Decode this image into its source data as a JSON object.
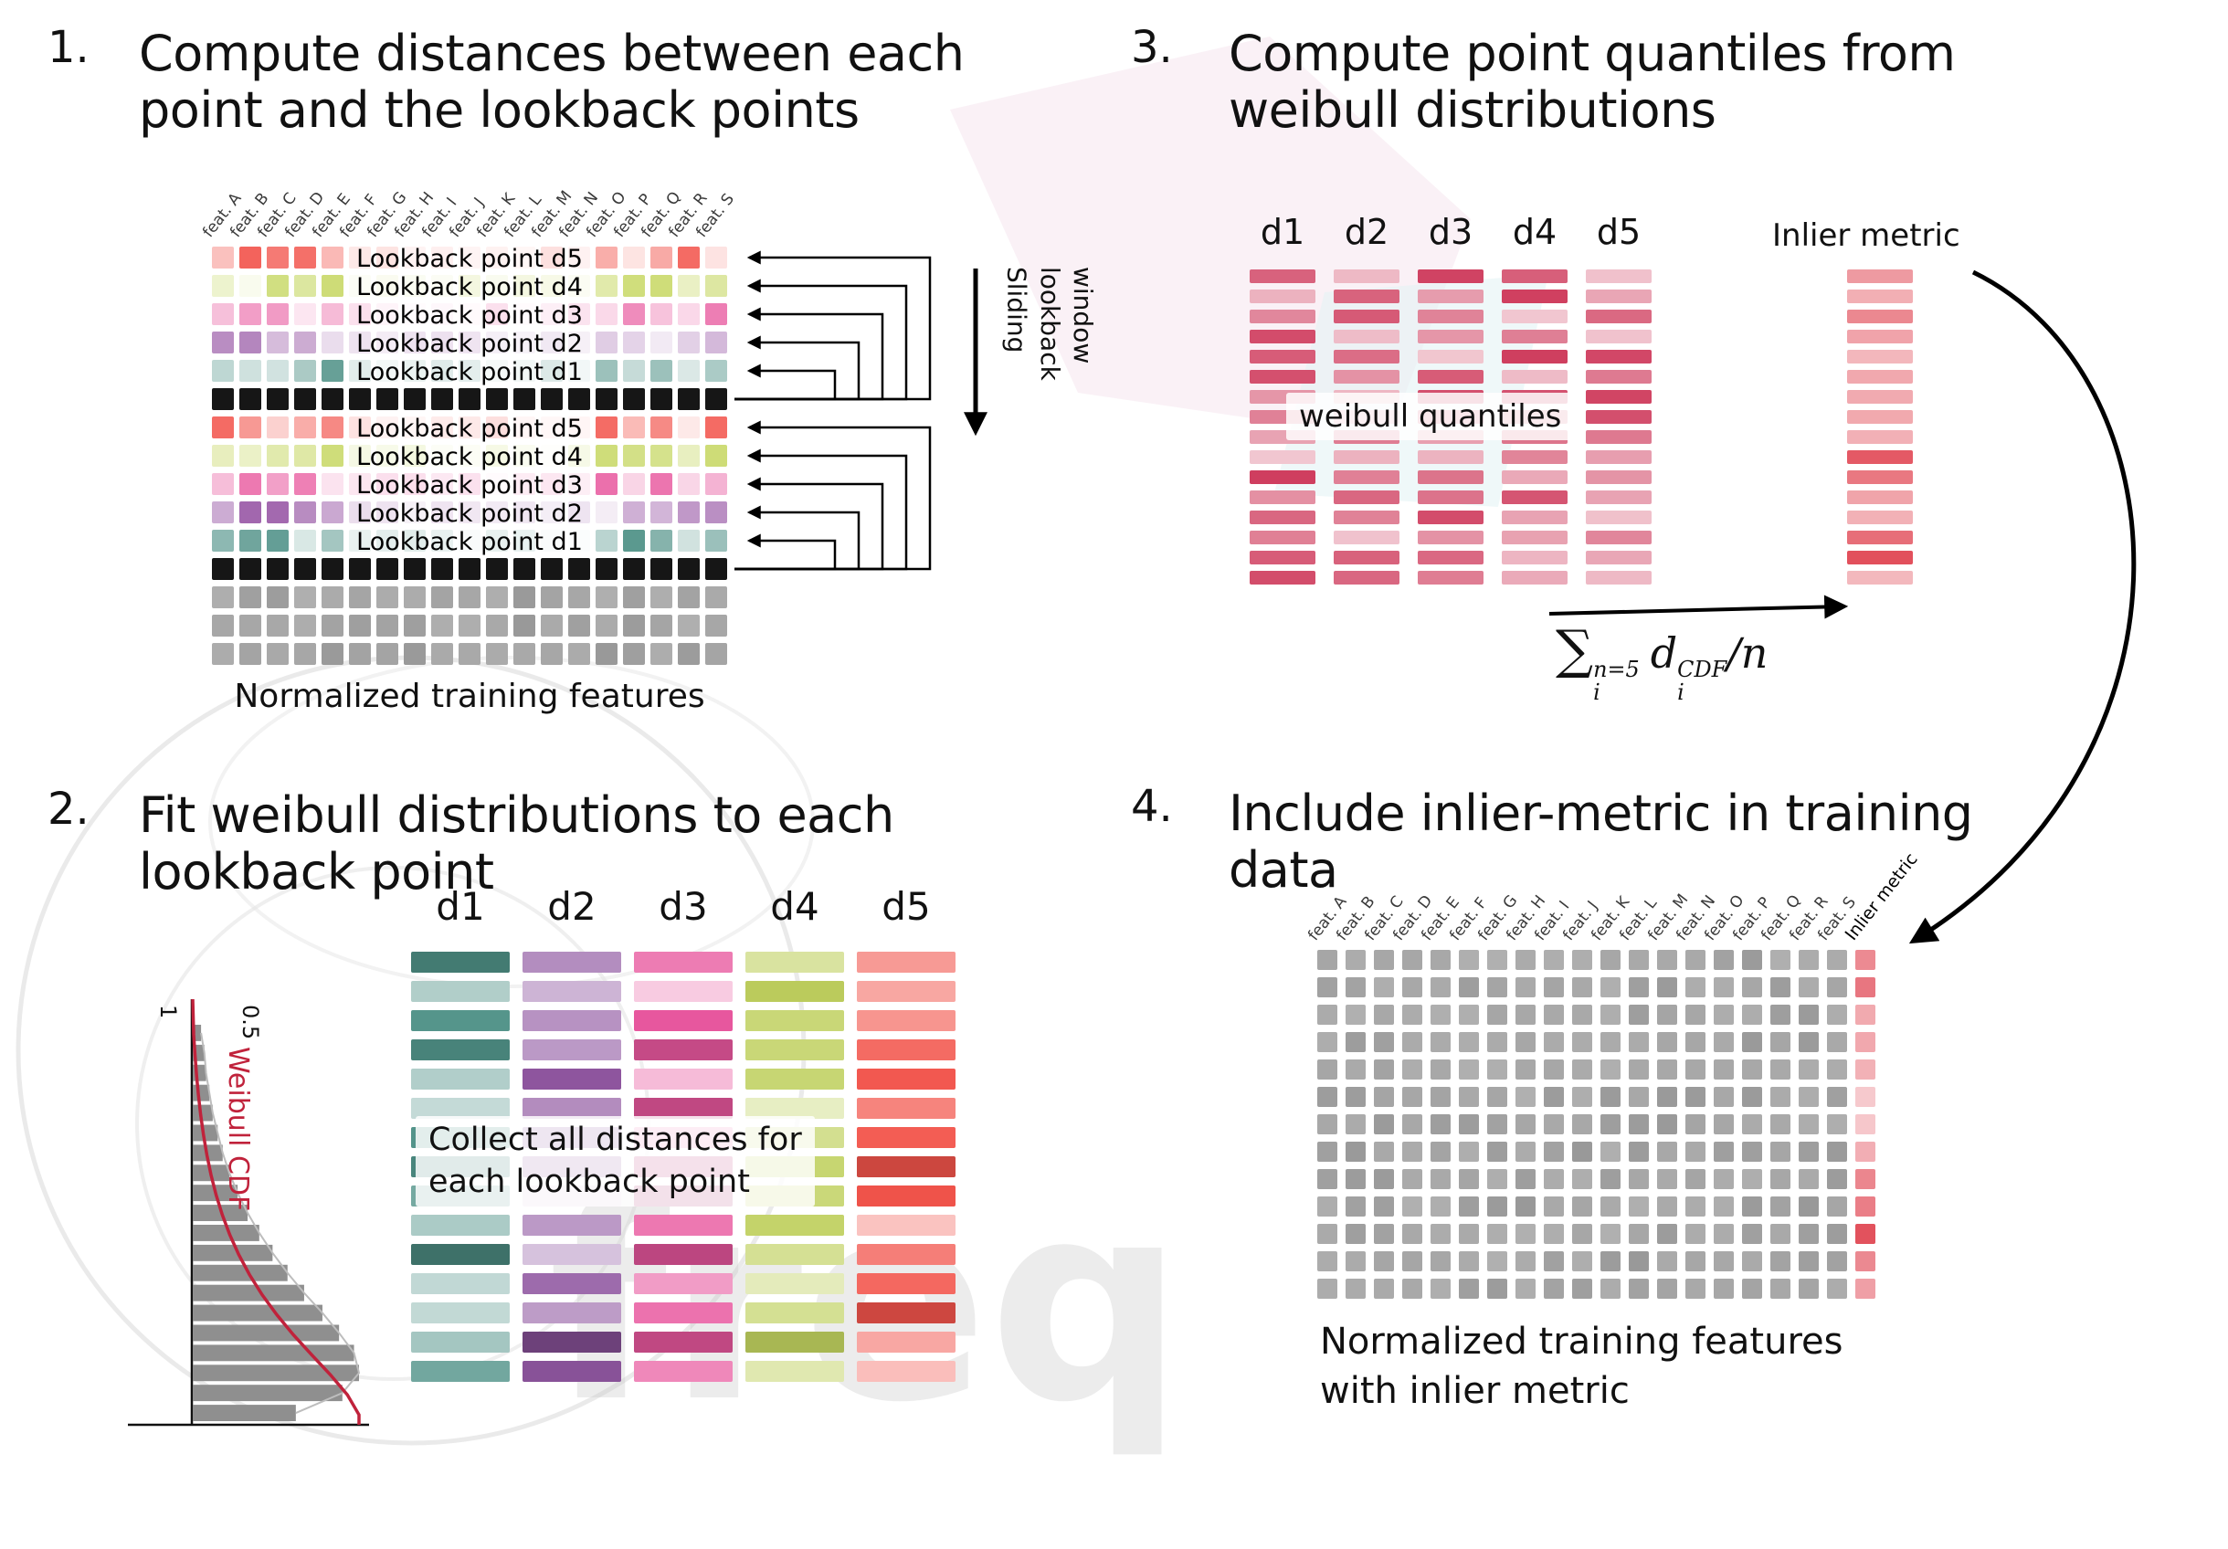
{
  "watermark": {
    "text": "freq"
  },
  "step1": {
    "number": "1.",
    "title_line1": "Compute distances between each",
    "title_line2": "point and the lookback points",
    "feature_labels": [
      "feat. A",
      "feat. B",
      "feat. C",
      "feat. D",
      "feat. E",
      "feat. F",
      "feat. G",
      "feat. H",
      "feat. I",
      "feat. J",
      "feat. K",
      "feat. L",
      "feat. M",
      "feat. N",
      "feat. O",
      "feat. P",
      "feat. Q",
      "feat. R",
      "feat. S"
    ],
    "lookback_rows": [
      {
        "key": "d5",
        "label": "Lookback point d5",
        "color": "#f2564e"
      },
      {
        "key": "d4",
        "label": "Lookback point d4",
        "color": "#c9d96a"
      },
      {
        "key": "d3",
        "label": "Lookback point d3",
        "color": "#e8589e"
      },
      {
        "key": "d2",
        "label": "Lookback point d2",
        "color": "#9c5ea9"
      },
      {
        "key": "d1",
        "label": "Lookback point d1",
        "color": "#4f9187"
      }
    ],
    "row_types": [
      "d5",
      "d4",
      "d3",
      "d2",
      "d1",
      "black",
      "d5",
      "d4",
      "d3",
      "d2",
      "d1",
      "black",
      "gray",
      "gray",
      "gray"
    ],
    "black_color": "#161616",
    "gray_color": "#a4a4a4",
    "sliding_lines": [
      "Sliding",
      "lookback",
      "window"
    ],
    "caption": "Normalized training features"
  },
  "step2": {
    "number": "2.",
    "title_line1": "Fit weibull distributions to each",
    "title_line2": "lookback point",
    "hist": {
      "cdf_label": "Weibull CDF",
      "tick_labels": [
        "1",
        "0.5"
      ],
      "bars": [
        0.05,
        0.07,
        0.08,
        0.1,
        0.12,
        0.15,
        0.18,
        0.22,
        0.27,
        0.33,
        0.4,
        0.48,
        0.57,
        0.67,
        0.78,
        0.88,
        0.97,
        1.0,
        0.9,
        0.62
      ],
      "cdf_color": "#c0223b",
      "bar_color": "#8f8f8f"
    },
    "columns": [
      {
        "label": "d1",
        "color": "#4f9187"
      },
      {
        "label": "d2",
        "color": "#8f56a0"
      },
      {
        "label": "d3",
        "color": "#e8579e"
      },
      {
        "label": "d4",
        "color": "#bfd05e"
      },
      {
        "label": "d5",
        "color": "#f2544b"
      }
    ],
    "bars_per_column": 15,
    "overlay_line1": "Collect all distances for",
    "overlay_line2": "each lookback point"
  },
  "step3": {
    "number": "3.",
    "title_line1": "Compute point quantiles from",
    "title_line2": "weibull distributions",
    "columns": [
      "d1",
      "d2",
      "d3",
      "d4",
      "d5"
    ],
    "bars_per_column": 16,
    "quantile_color": "#cf3d5e",
    "overlay_text": "weibull quantiles",
    "inlier_label": "Inlier metric",
    "inlier_color": "#e2505c",
    "formula": {
      "sum": "∑",
      "sum_sup": "n=5",
      "sum_sub": "i",
      "term": "d",
      "term_sup": "CDF",
      "term_sub": "i",
      "tail": "/n"
    }
  },
  "step4": {
    "number": "4.",
    "title_line1": "Include inlier-metric in training",
    "title_line2": "data",
    "feature_labels": [
      "feat. A",
      "feat. B",
      "feat. C",
      "feat. D",
      "feat. E",
      "feat. F",
      "feat. G",
      "feat. H",
      "feat. I",
      "feat. J",
      "feat. K",
      "feat. L",
      "feat. M",
      "feat. N",
      "feat. O",
      "feat. P",
      "feat. Q",
      "feat. R",
      "feat. S"
    ],
    "inlier_column_label": "Inlier metric",
    "grid_rows": 13,
    "gray_color": "#a4a4a4",
    "inlier_color": "#e2505c",
    "caption_line1": "Normalized training features",
    "caption_line2": "with inlier metric"
  }
}
